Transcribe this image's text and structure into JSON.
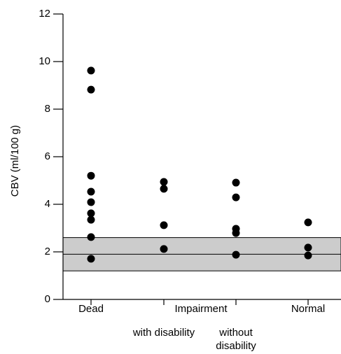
{
  "chart_data": {
    "type": "strip",
    "y_label": "CBV (ml/100 g)",
    "categories": [
      "Dead",
      "with disability",
      "without disability",
      "Normal"
    ],
    "group_label": "Impairment",
    "values": [
      [
        9.62,
        8.82,
        5.2,
        4.53,
        4.09,
        3.62,
        3.35,
        2.62,
        1.71
      ],
      [
        4.94,
        4.65,
        3.12,
        2.12
      ],
      [
        4.91,
        4.29,
        2.97,
        2.79,
        1.88
      ],
      [
        3.24,
        2.18,
        1.85
      ]
    ],
    "reference_band": {
      "low": 1.2,
      "high": 2.6,
      "mid": 1.9,
      "color": "#cccccc"
    },
    "color": "#000000",
    "ylim": [
      0,
      12
    ],
    "yticks": [
      0,
      2,
      4,
      6,
      8,
      10,
      12
    ]
  }
}
